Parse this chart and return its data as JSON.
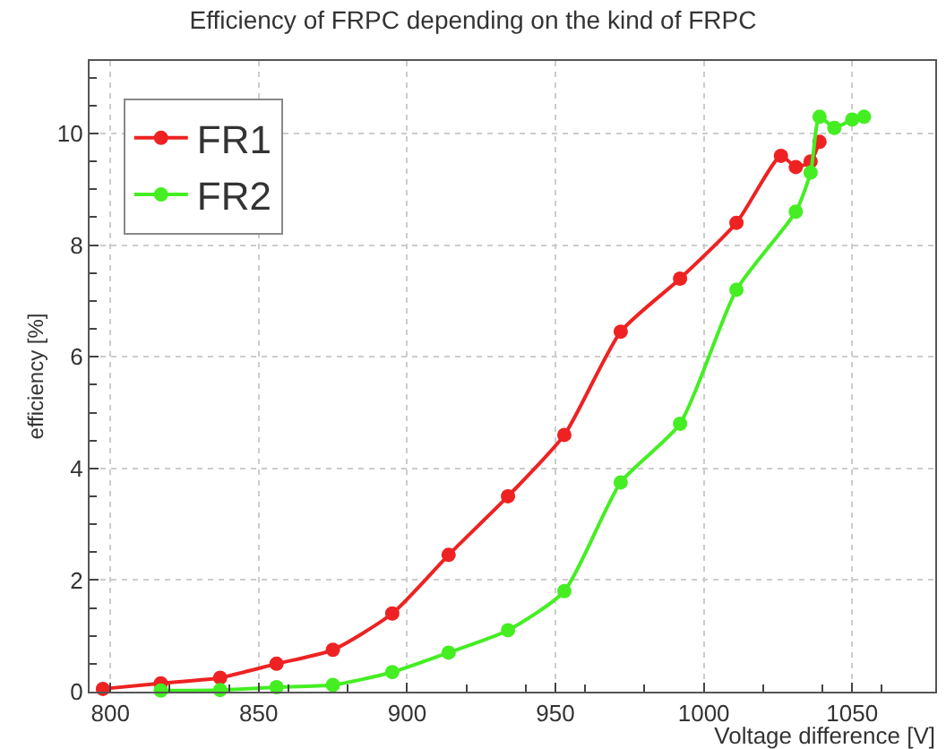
{
  "chart_data": {
    "type": "line",
    "title": "Efficiency of FRPC depending on the kind of FRPC",
    "xlabel": "Voltage difference [V]",
    "ylabel": "efficiency [%]",
    "series": [
      {
        "name": "FR1",
        "color": "#ee2222",
        "x": [
          797.5,
          817,
          837,
          856,
          875,
          895,
          914,
          934,
          953,
          972,
          992,
          1011,
          1026,
          1031,
          1036,
          1039
        ],
        "values": [
          0.05,
          0.15,
          0.25,
          0.5,
          0.75,
          1.4,
          2.45,
          3.5,
          4.6,
          6.45,
          7.4,
          8.4,
          9.6,
          9.4,
          9.5,
          9.85
        ]
      },
      {
        "name": "FR2",
        "color": "#44ee22",
        "x": [
          817,
          837,
          856,
          875,
          895,
          914,
          934,
          953,
          972,
          992,
          1011,
          1031,
          1036,
          1039,
          1044,
          1050,
          1054
        ],
        "values": [
          0.02,
          0.03,
          0.08,
          0.12,
          0.35,
          0.7,
          1.1,
          1.8,
          3.75,
          4.8,
          7.2,
          8.6,
          9.3,
          10.3,
          10.1,
          10.25,
          10.3
        ]
      }
    ],
    "xlim": [
      793,
      1078
    ],
    "ylim": [
      0,
      11.3
    ],
    "xticks": [
      800,
      850,
      900,
      950,
      1000,
      1050
    ],
    "yticks": [
      0,
      2,
      4,
      6,
      8,
      10
    ],
    "grid": true,
    "legend": "top left",
    "marker": "circle",
    "line_style": "solid"
  }
}
